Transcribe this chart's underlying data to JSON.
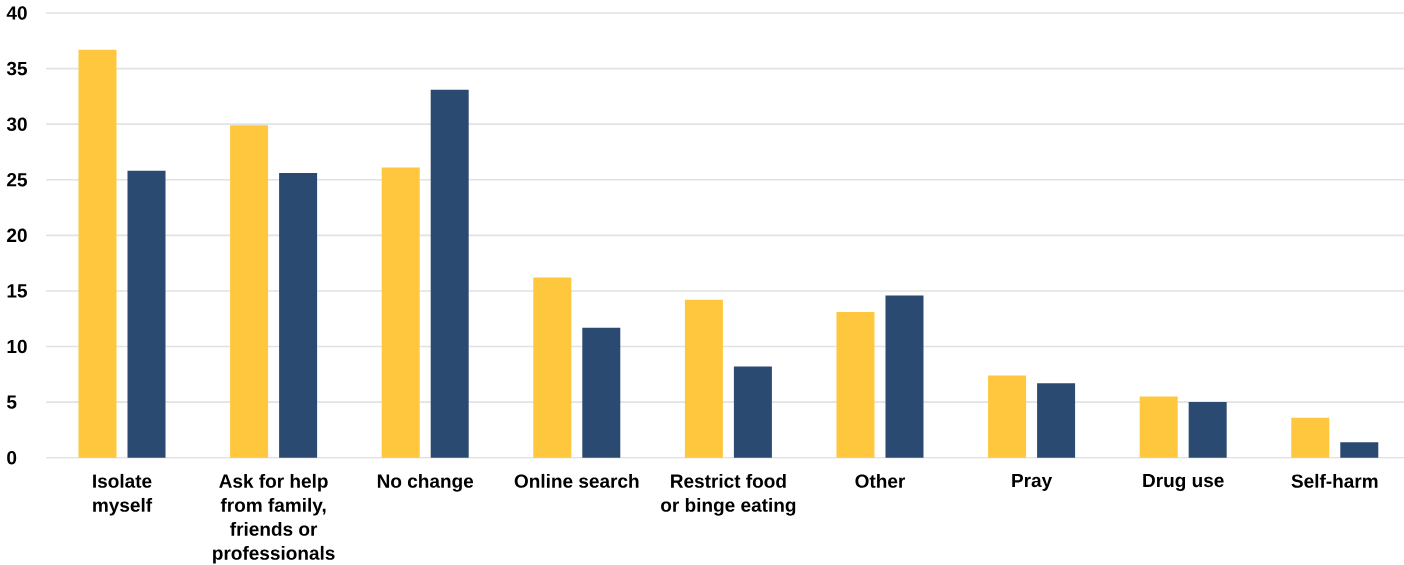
{
  "chart_data": {
    "type": "bar",
    "categories": [
      "Isolate myself",
      "Ask for help from family, friends or professionals",
      "No change",
      "Online search",
      "Restrict food or binge eating",
      "Other",
      "Pray",
      "Drug use",
      "Self-harm"
    ],
    "series": [
      {
        "color": "#fec73d",
        "values": [
          36.7,
          29.9,
          26.1,
          16.2,
          14.2,
          13.1,
          7.4,
          5.5,
          3.6
        ]
      },
      {
        "color": "#2a4a72",
        "values": [
          25.8,
          25.6,
          33.1,
          11.7,
          8.2,
          14.6,
          6.7,
          5.0,
          1.4
        ]
      }
    ],
    "ylim": [
      0,
      40
    ],
    "yticks": [
      0,
      5,
      10,
      15,
      20,
      25,
      30,
      35,
      40
    ],
    "grid": "y"
  }
}
